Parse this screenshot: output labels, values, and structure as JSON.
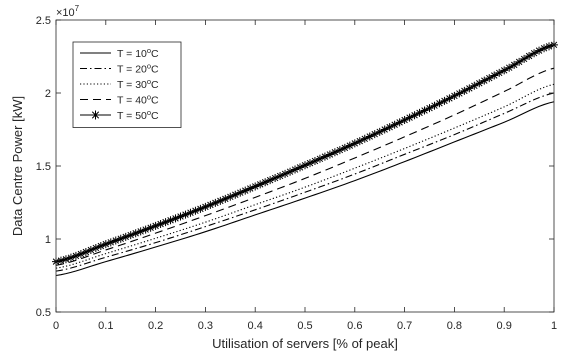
{
  "chart_data": {
    "type": "line",
    "xlabel": "Utilisation of servers [% of peak]",
    "ylabel": "Data Centre Power [kW]",
    "y_multiplier_base": "×10",
    "y_multiplier_exp": "7",
    "xlim": [
      0,
      1
    ],
    "ylim": [
      5000000,
      25000000
    ],
    "y_scale": 10000000,
    "x_ticks": [
      0,
      0.1,
      0.2,
      0.3,
      0.4,
      0.5,
      0.6,
      0.7,
      0.8,
      0.9,
      1
    ],
    "x_tick_labels": [
      "0",
      "0.1",
      "0.2",
      "0.3",
      "0.4",
      "0.5",
      "0.6",
      "0.7",
      "0.8",
      "0.9",
      "1"
    ],
    "y_ticks": [
      5000000,
      10000000,
      15000000,
      20000000,
      25000000
    ],
    "y_tick_labels": [
      "0.5",
      "1",
      "1.5",
      "2",
      "2.5"
    ],
    "grid": false,
    "legend_position": "top-left",
    "x": [
      0,
      0.1,
      0.2,
      0.3,
      0.4,
      0.5,
      0.6,
      0.7,
      0.8,
      0.9,
      1
    ],
    "series": [
      {
        "name": "T = 10°C",
        "label_prefix": "T = 10",
        "label_sup": "o",
        "label_suffix": "C",
        "style": "solid",
        "values": [
          7500000,
          8450000,
          9450000,
          10500000,
          11650000,
          12800000,
          14000000,
          15300000,
          16650000,
          18000000,
          19400000
        ]
      },
      {
        "name": "T = 20°C",
        "label_prefix": "T = 20",
        "label_sup": "o",
        "label_suffix": "C",
        "style": "dashdot",
        "values": [
          7800000,
          8750000,
          9750000,
          10850000,
          12000000,
          13200000,
          14450000,
          15800000,
          17150000,
          18600000,
          20000000
        ]
      },
      {
        "name": "T = 30°C",
        "label_prefix": "T = 30",
        "label_sup": "o",
        "label_suffix": "C",
        "style": "dotted",
        "values": [
          8000000,
          9000000,
          10050000,
          11150000,
          12350000,
          13550000,
          14850000,
          16200000,
          17600000,
          19050000,
          20600000
        ]
      },
      {
        "name": "T = 40°C",
        "label_prefix": "T = 40",
        "label_sup": "o",
        "label_suffix": "C",
        "style": "dashed",
        "values": [
          8200000,
          9250000,
          10400000,
          11600000,
          12850000,
          14150000,
          15550000,
          17000000,
          18500000,
          20100000,
          21700000
        ]
      },
      {
        "name": "T = 50°C",
        "label_prefix": "T = 50",
        "label_sup": "o",
        "label_suffix": "C",
        "style": "solid-star",
        "values": [
          8450000,
          9650000,
          10900000,
          12200000,
          13600000,
          15050000,
          16550000,
          18150000,
          19800000,
          21550000,
          23300000
        ]
      }
    ]
  }
}
